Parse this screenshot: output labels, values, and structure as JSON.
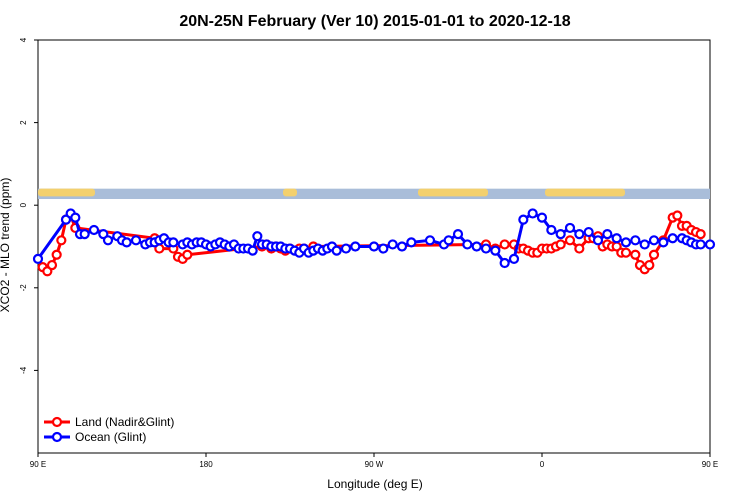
{
  "chart_data": {
    "type": "line",
    "title": "20N-25N February (Ver 10)   2015-01-01 to 2020-12-18",
    "xlabel": "Longitude (deg E)",
    "ylabel": "XCO2 - MLO trend (ppm)",
    "xlim": [
      -90,
      270
    ],
    "ylim": [
      -6,
      4
    ],
    "x_ticks": [
      {
        "value": -90,
        "label": "90 E"
      },
      {
        "value": 0,
        "label": "180"
      },
      {
        "value": 90,
        "label": "90 W"
      },
      {
        "value": 180,
        "label": "0"
      },
      {
        "value": 270,
        "label": "90 E"
      },
      {
        "value": 360,
        "label": "180"
      }
    ],
    "y_ticks": [
      {
        "value": -4,
        "label": "-4"
      },
      {
        "value": -2,
        "label": "-2"
      },
      {
        "value": 0,
        "label": "0"
      },
      {
        "value": 2,
        "label": "2"
      },
      {
        "value": 4,
        "label": "4"
      }
    ],
    "map_band": {
      "ymin": 0.15,
      "ymax": 0.4,
      "ocean_color": "#a9bdd9",
      "land_color": "#f3d06e"
    },
    "legend": {
      "position": "bottom-left"
    },
    "series": [
      {
        "name": "Land (Nadir&Glint)",
        "color": "#ff0000",
        "x": [
          -87.5,
          -85,
          -82.5,
          -80,
          -77.5,
          -75,
          -72.5,
          -70,
          -27.5,
          -25,
          -17.5,
          -15,
          -12.5,
          -10,
          30,
          32.5,
          35,
          37.5,
          40,
          42.5,
          45,
          50,
          52.5,
          57.5,
          150,
          155,
          160,
          165,
          167.5,
          170,
          172.5,
          175,
          177.5,
          180,
          182.5,
          185,
          187.5,
          190,
          195,
          200,
          205,
          207.5,
          210,
          212.5,
          215,
          217.5,
          220,
          222.5,
          225,
          230,
          232.5,
          235,
          237.5,
          240,
          245,
          250,
          252.5,
          255,
          257.5,
          260,
          262.5,
          265,
          272.5,
          275,
          280,
          282.5,
          285
        ],
        "y": [
          -1.5,
          -1.6,
          -1.45,
          -1.2,
          -0.85,
          -0.35,
          -0.25,
          -0.55,
          -0.8,
          -1.05,
          -1.05,
          -1.25,
          -1.3,
          -1.2,
          -1.0,
          -0.95,
          -1.05,
          -1.0,
          -1.05,
          -1.1,
          -1.05,
          -1.05,
          -1.05,
          -1.0,
          -0.95,
          -1.05,
          -0.95,
          -0.95,
          -1.05,
          -1.05,
          -1.1,
          -1.15,
          -1.15,
          -1.05,
          -1.05,
          -1.05,
          -1.0,
          -0.95,
          -0.85,
          -1.05,
          -0.8,
          -0.8,
          -0.75,
          -1.0,
          -0.95,
          -1.0,
          -1.0,
          -1.15,
          -1.15,
          -1.2,
          -1.45,
          -1.55,
          -1.45,
          -1.2,
          -0.85,
          -0.3,
          -0.25,
          -0.5,
          -0.5,
          -0.6,
          -0.65,
          -0.7,
          -0.3,
          -0.35,
          -0.5,
          -0.55,
          -0.5
        ]
      },
      {
        "name": "Ocean (Glint)",
        "color": "#0000ff",
        "x": [
          -90,
          -75,
          -72.5,
          -70,
          -67.5,
          -65,
          -60,
          -55,
          -52.5,
          -47.5,
          -45,
          -42.5,
          -37.5,
          -32.5,
          -30,
          -27.5,
          -25,
          -22.5,
          -20,
          -17.5,
          -12.5,
          -10,
          -7.5,
          -5,
          -2.5,
          0,
          2.5,
          5,
          7.5,
          10,
          12.5,
          15,
          17.5,
          20,
          22.5,
          25,
          27.5,
          30,
          32.5,
          35,
          37.5,
          40,
          42.5,
          45,
          47.5,
          50,
          52.5,
          55,
          57.5,
          60,
          62.5,
          65,
          67.5,
          70,
          75,
          80,
          90,
          95,
          100,
          105,
          110,
          120,
          127.5,
          130,
          135,
          140,
          145,
          150,
          155,
          160,
          165,
          170,
          175,
          180,
          185,
          190,
          195,
          200,
          205,
          210,
          215,
          220,
          225,
          230,
          235,
          240,
          245,
          250,
          255,
          257.5,
          260,
          262.5,
          265,
          270
        ],
        "y": [
          -1.3,
          -0.35,
          -0.2,
          -0.3,
          -0.7,
          -0.7,
          -0.6,
          -0.7,
          -0.85,
          -0.75,
          -0.85,
          -0.9,
          -0.85,
          -0.95,
          -0.9,
          -0.9,
          -0.85,
          -0.8,
          -0.9,
          -0.9,
          -0.95,
          -0.9,
          -0.95,
          -0.9,
          -0.9,
          -0.95,
          -1.0,
          -0.95,
          -0.9,
          -0.95,
          -1.0,
          -0.95,
          -1.05,
          -1.05,
          -1.05,
          -1.1,
          -0.75,
          -0.95,
          -0.95,
          -1.0,
          -1.0,
          -1.0,
          -1.05,
          -1.05,
          -1.1,
          -1.15,
          -1.05,
          -1.15,
          -1.1,
          -1.05,
          -1.1,
          -1.05,
          -1.0,
          -1.1,
          -1.05,
          -1.0,
          -1.0,
          -1.05,
          -0.95,
          -1.0,
          -0.9,
          -0.85,
          -0.95,
          -0.85,
          -0.7,
          -0.95,
          -1.0,
          -1.05,
          -1.1,
          -1.4,
          -1.3,
          -0.35,
          -0.2,
          -0.3,
          -0.6,
          -0.7,
          -0.55,
          -0.7,
          -0.65,
          -0.85,
          -0.7,
          -0.8,
          -0.9,
          -0.85,
          -0.95,
          -0.85,
          -0.9,
          -0.8,
          -0.8,
          -0.85,
          -0.9,
          -0.95,
          -0.95,
          -0.95
        ]
      }
    ]
  }
}
